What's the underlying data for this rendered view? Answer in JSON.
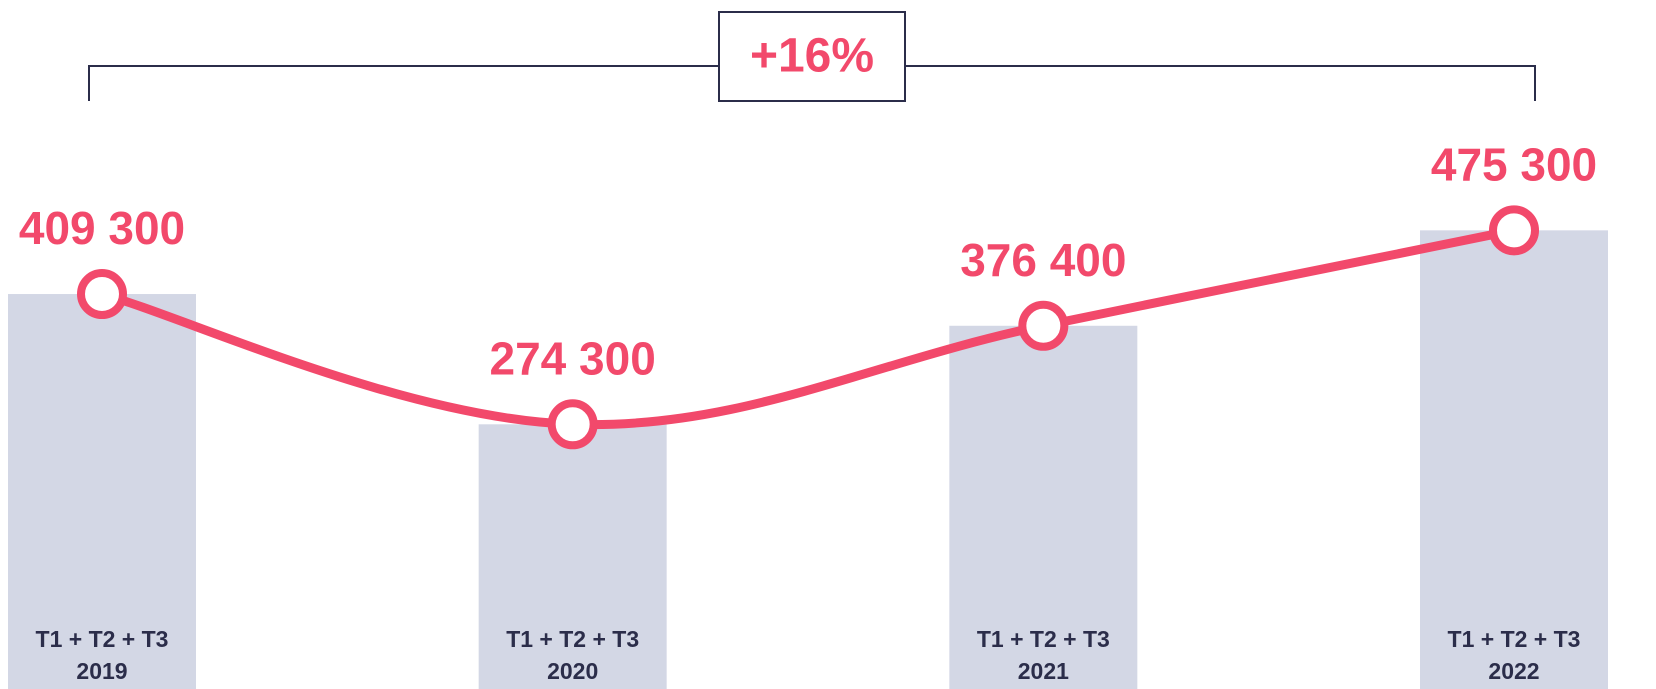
{
  "chart_data": {
    "type": "combo",
    "annotation": "+16%",
    "categories": [
      [
        "T1 + T2 + T3",
        "2019"
      ],
      [
        "T1 + T2 + T3",
        "2020"
      ],
      [
        "T1 + T2 + T3",
        "2021"
      ],
      [
        "T1 + T2 + T3",
        "2022"
      ]
    ],
    "values": [
      409300,
      274300,
      376400,
      475300
    ],
    "value_labels": [
      "409 300",
      "274 300",
      "376 400",
      "475 300"
    ],
    "bar_color": "#d3d7e5",
    "line_color": "#f2496b",
    "ylim": [
      0,
      714000
    ]
  }
}
